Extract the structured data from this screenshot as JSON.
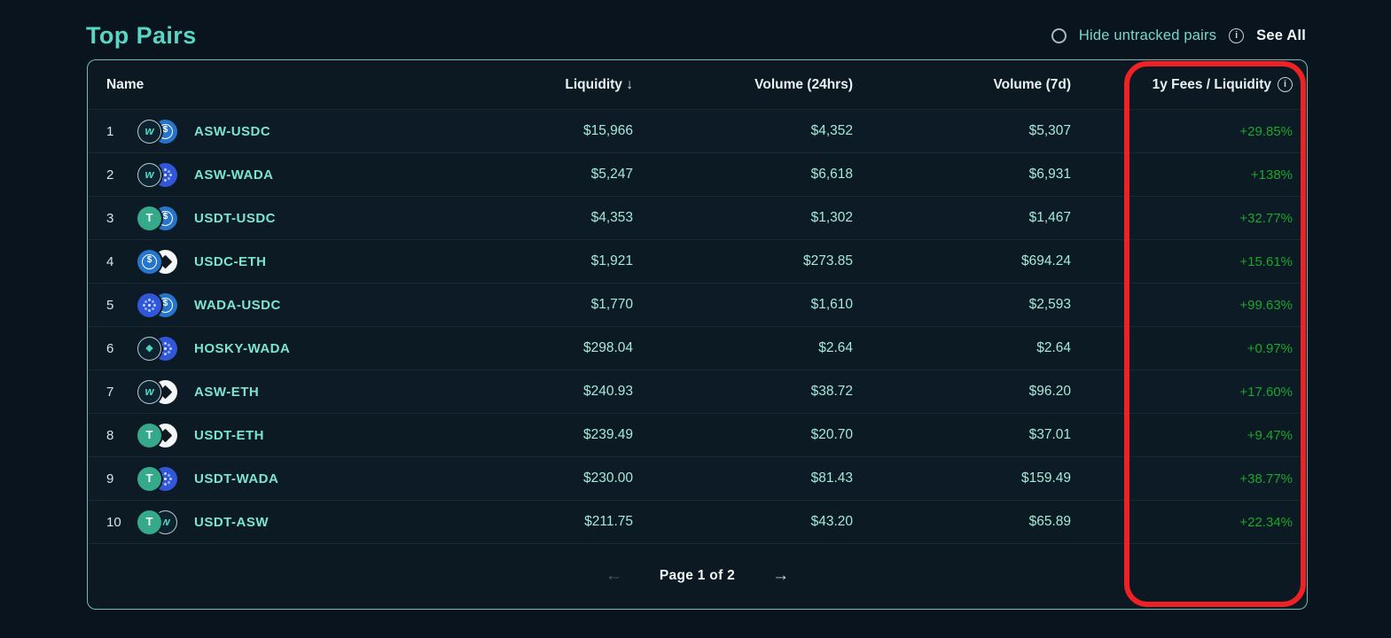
{
  "page": {
    "title": "Top Pairs"
  },
  "controls": {
    "hide_untracked_label": "Hide untracked pairs",
    "info_icon_glyph": "i",
    "see_all_label": "See All"
  },
  "table": {
    "headers": {
      "name": "Name",
      "liquidity": "Liquidity ↓",
      "volume24": "Volume (24hrs)",
      "volume7": "Volume (7d)",
      "fees": "1y Fees / Liquidity",
      "fees_info_glyph": "i"
    },
    "rows": [
      {
        "index": "1",
        "pair": "ASW-USDC",
        "icons": [
          "asw-coin-icon",
          "usdc-coin-icon"
        ],
        "liquidity": "$15,966",
        "volume24": "$4,352",
        "volume7": "$5,307",
        "fees": "+29.85%"
      },
      {
        "index": "2",
        "pair": "ASW-WADA",
        "icons": [
          "asw-coin-icon",
          "wada-coin-icon"
        ],
        "liquidity": "$5,247",
        "volume24": "$6,618",
        "volume7": "$6,931",
        "fees": "+138%"
      },
      {
        "index": "3",
        "pair": "USDT-USDC",
        "icons": [
          "usdt-coin-icon",
          "usdc-coin-icon"
        ],
        "liquidity": "$4,353",
        "volume24": "$1,302",
        "volume7": "$1,467",
        "fees": "+32.77%"
      },
      {
        "index": "4",
        "pair": "USDC-ETH",
        "icons": [
          "usdc-coin-icon",
          "eth-coin-icon"
        ],
        "liquidity": "$1,921",
        "volume24": "$273.85",
        "volume7": "$694.24",
        "fees": "+15.61%"
      },
      {
        "index": "5",
        "pair": "WADA-USDC",
        "icons": [
          "wada-coin-icon",
          "usdc-coin-icon"
        ],
        "liquidity": "$1,770",
        "volume24": "$1,610",
        "volume7": "$2,593",
        "fees": "+99.63%"
      },
      {
        "index": "6",
        "pair": "HOSKY-WADA",
        "icons": [
          "hosky-coin-icon",
          "wada-coin-icon"
        ],
        "liquidity": "$298.04",
        "volume24": "$2.64",
        "volume7": "$2.64",
        "fees": "+0.97%"
      },
      {
        "index": "7",
        "pair": "ASW-ETH",
        "icons": [
          "asw-coin-icon",
          "eth-coin-icon"
        ],
        "liquidity": "$240.93",
        "volume24": "$38.72",
        "volume7": "$96.20",
        "fees": "+17.60%"
      },
      {
        "index": "8",
        "pair": "USDT-ETH",
        "icons": [
          "usdt-coin-icon",
          "eth-coin-icon"
        ],
        "liquidity": "$239.49",
        "volume24": "$20.70",
        "volume7": "$37.01",
        "fees": "+9.47%"
      },
      {
        "index": "9",
        "pair": "USDT-WADA",
        "icons": [
          "usdt-coin-icon",
          "wada-coin-icon"
        ],
        "liquidity": "$230.00",
        "volume24": "$81.43",
        "volume7": "$159.49",
        "fees": "+38.77%"
      },
      {
        "index": "10",
        "pair": "USDT-ASW",
        "icons": [
          "usdt-coin-icon",
          "asw-coin-icon"
        ],
        "liquidity": "$211.75",
        "volume24": "$43.20",
        "volume7": "$65.89",
        "fees": "+22.34%"
      }
    ],
    "pagination": {
      "prev": "←",
      "label": "Page 1 of 2",
      "next": "→"
    }
  },
  "annotation": {
    "highlight_color": "#ee2124",
    "highlighted_column": "1y Fees / Liquidity"
  },
  "colors": {
    "page_background": "#0a141e",
    "panel_background": "#0c1923",
    "panel_border_teal": "#7edcd3",
    "title_teal": "#56d6c3",
    "pair_teal": "#7ce5d1",
    "value_mint": "#a5e9d8",
    "positive_green": "#1da52c",
    "highlight_red": "#ee2124"
  }
}
